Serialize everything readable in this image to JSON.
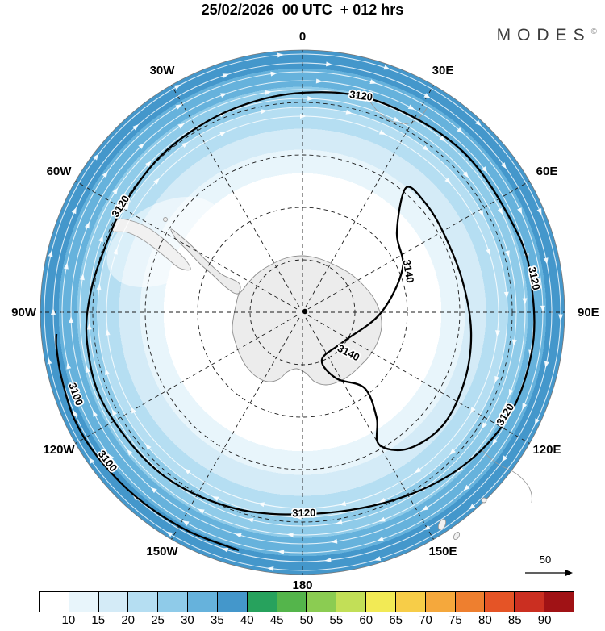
{
  "header": {
    "title": "25/02/2026  00 UTC  + 012 hrs",
    "brand": "MODES",
    "brand_mark": "©"
  },
  "map": {
    "longitude_labels": [
      "0",
      "30E",
      "60E",
      "90E",
      "120E",
      "150E",
      "180",
      "150W",
      "120W",
      "90W",
      "60W",
      "30W"
    ],
    "contour_labels": [
      {
        "text": "3120",
        "location": "north"
      },
      {
        "text": "3120",
        "location": "northwest"
      },
      {
        "text": "3120",
        "location": "east"
      },
      {
        "text": "3120",
        "location": "southeast"
      },
      {
        "text": "3120",
        "location": "south"
      },
      {
        "text": "3100",
        "location": "west-outer"
      },
      {
        "text": "3100",
        "location": "southwest-outer"
      },
      {
        "text": "3140",
        "location": "east-inner"
      },
      {
        "text": "3140",
        "location": "center"
      }
    ]
  },
  "reference_arrow": {
    "label": "50"
  },
  "chart_data": {
    "type": "contour_map",
    "projection": "south-polar-stereographic",
    "title": "25/02/2026 00 UTC + 012 hrs",
    "branding": "MODES©",
    "contours": {
      "labeled_levels": [
        3100,
        3120,
        3140
      ],
      "label_positions": [
        "north",
        "northwest",
        "east",
        "southeast",
        "south",
        "west-outer",
        "southwest-outer",
        "east-inner",
        "center"
      ]
    },
    "shading_legend": {
      "tick_labels": [
        10,
        15,
        20,
        25,
        30,
        35,
        40,
        45,
        50,
        55,
        60,
        65,
        70,
        75,
        80,
        85,
        90
      ],
      "colors": [
        "#ffffff",
        "#e8f5fb",
        "#d4ebf7",
        "#b5def2",
        "#8fcbe9",
        "#66b2dc",
        "#4497cb",
        "#27a25d",
        "#54b54b",
        "#8bcc52",
        "#c2df57",
        "#f2ea55",
        "#f7cd48",
        "#f5a83c",
        "#ee7f2f",
        "#e55426",
        "#cb2f21",
        "#a01215"
      ]
    },
    "longitude_labels": [
      "0",
      "30E",
      "60E",
      "90E",
      "120E",
      "150E",
      "180",
      "150W",
      "120W",
      "90W",
      "60W",
      "30W"
    ],
    "graticule": {
      "meridian_step_deg": 30,
      "latitude_circle_count": 4
    },
    "wind_reference": {
      "value": 50
    },
    "streamlines": {
      "color": "#ffffff",
      "direction": "clockwise"
    }
  }
}
